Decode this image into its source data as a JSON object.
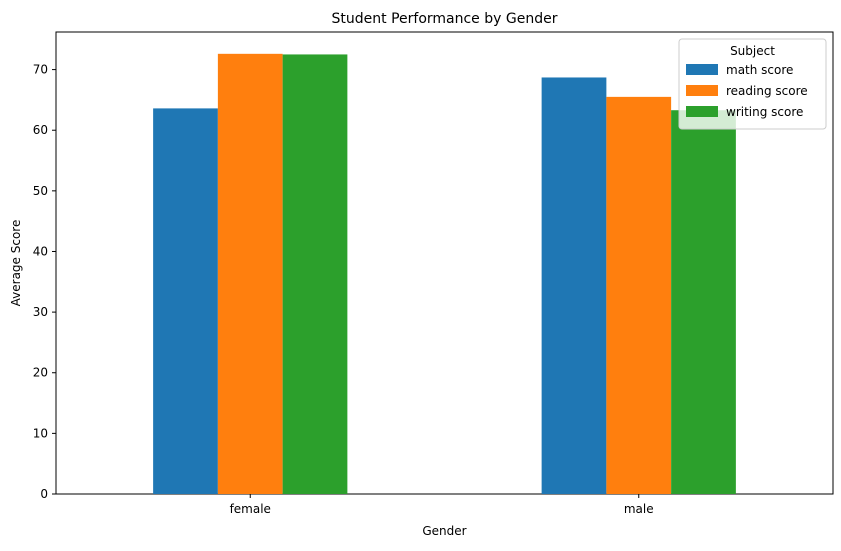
{
  "chart_data": {
    "type": "bar",
    "title": "Student Performance by Gender",
    "xlabel": "Gender",
    "ylabel": "Average Score",
    "categories": [
      "female",
      "male"
    ],
    "series": [
      {
        "name": "math score",
        "color": "#1f77b4",
        "values": [
          63.6,
          68.7
        ]
      },
      {
        "name": "reading score",
        "color": "#ff7f0e",
        "values": [
          72.6,
          65.5
        ]
      },
      {
        "name": "writing score",
        "color": "#2ca02c",
        "values": [
          72.5,
          63.3
        ]
      }
    ],
    "ylim": [
      0,
      76.2
    ],
    "yticks": [
      0,
      10,
      20,
      30,
      40,
      50,
      60,
      70
    ],
    "legend": {
      "title": "Subject",
      "position": "top-right"
    },
    "grid": false
  }
}
